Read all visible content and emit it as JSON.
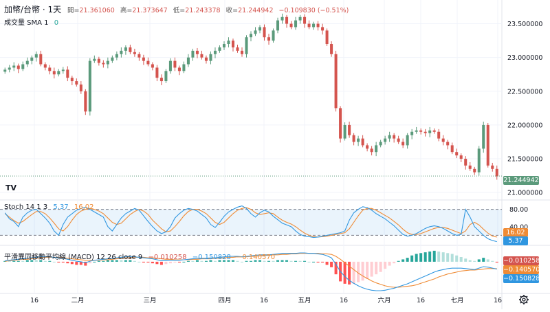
{
  "header": {
    "symbol": "加幣/台幣 · 1天",
    "open_label": "開",
    "open": "21.361060",
    "high_label": "高",
    "high": "21.373647",
    "low_label": "低",
    "low": "21.243378",
    "close_label": "收",
    "close": "21.244942",
    "change": "−0.109830 (−0.51%)"
  },
  "volume_legend": {
    "label": "成交量 SMA 1",
    "value": "0"
  },
  "stoch_legend": {
    "label": "Stoch 14 1 3",
    "k": "5.37",
    "d": "16.02"
  },
  "macd_legend": {
    "label": "平滑異同移動平均線 (MACD) 12 26 close 9",
    "hist": "−0.010258",
    "macd": "−0.150828",
    "signal": "−0.140570"
  },
  "price_box": "21.244942",
  "stoch_boxes": {
    "d": "16.02",
    "k": "5.37"
  },
  "macd_boxes": {
    "hist": "−0.010258",
    "signal": "−0.140570",
    "macd": "−0.150828"
  },
  "logo_text": "TV",
  "settings_icon": "gear-icon",
  "colors": {
    "up": "#5b9a7b",
    "down": "#d4544e",
    "stoch_k": "#2f96e0",
    "stoch_d": "#ef8b35",
    "macd": "#2f96e0",
    "signal": "#ef8b35"
  },
  "chart_data": [
    {
      "type": "candlestick",
      "price_ticks": [
        "23.500000",
        "23.000000",
        "22.500000",
        "22.000000",
        "21.500000",
        "21.000000"
      ],
      "x_ticks": [
        "16",
        "二月",
        "三月",
        "四月",
        "16",
        "五月",
        "16",
        "六月",
        "16",
        "七月",
        "16"
      ],
      "ylim": [
        20.9,
        23.75
      ],
      "closes": [
        22.82,
        22.85,
        22.88,
        22.83,
        22.9,
        22.95,
        23.0,
        23.05,
        22.9,
        22.85,
        22.8,
        22.75,
        22.8,
        22.82,
        22.7,
        22.65,
        22.6,
        22.5,
        22.2,
        22.95,
        22.98,
        22.92,
        22.9,
        22.95,
        23.0,
        23.05,
        23.1,
        23.15,
        23.08,
        23.05,
        23.0,
        22.95,
        22.9,
        22.85,
        22.7,
        22.65,
        22.8,
        22.95,
        22.85,
        22.8,
        22.9,
        23.0,
        23.1,
        23.05,
        23.0,
        22.95,
        23.05,
        23.1,
        23.15,
        23.2,
        23.25,
        23.15,
        23.1,
        23.05,
        23.3,
        23.35,
        23.4,
        23.45,
        23.3,
        23.25,
        23.4,
        23.55,
        23.6,
        23.5,
        23.45,
        23.55,
        23.6,
        23.5,
        23.45,
        23.5,
        23.45,
        23.4,
        23.2,
        23.05,
        22.25,
        21.8,
        22.0,
        21.85,
        21.75,
        21.8,
        21.7,
        21.65,
        21.6,
        21.7,
        21.75,
        21.8,
        21.85,
        21.8,
        21.75,
        21.7,
        21.85,
        21.9,
        21.92,
        21.9,
        21.88,
        21.92,
        21.9,
        21.8,
        21.75,
        21.7,
        21.6,
        21.55,
        21.5,
        21.4,
        21.35,
        21.3,
        21.65,
        22.0,
        21.4,
        21.35,
        21.24
      ],
      "volume": [
        0
      ],
      "stoch": {
        "k": [
          72,
          58,
          52,
          40,
          62,
          72,
          78,
          80,
          70,
          60,
          48,
          30,
          20,
          45,
          62,
          70,
          78,
          82,
          85,
          80,
          74,
          68,
          62,
          40,
          30,
          45,
          60,
          70,
          76,
          82,
          78,
          65,
          52,
          40,
          30,
          24,
          28,
          40,
          60,
          70,
          78,
          82,
          80,
          76,
          68,
          60,
          45,
          38,
          50,
          64,
          74,
          80,
          85,
          88,
          82,
          70,
          62,
          72,
          78,
          74,
          64,
          56,
          48,
          44,
          40,
          30,
          22,
          18,
          17,
          15,
          16,
          18,
          20,
          22,
          24,
          26,
          30,
          55,
          72,
          80,
          86,
          84,
          78,
          70,
          64,
          58,
          50,
          42,
          32,
          22,
          18,
          20,
          24,
          30,
          36,
          40,
          42,
          40,
          36,
          30,
          24,
          20,
          22,
          80,
          62,
          40,
          30,
          20,
          12,
          8,
          5.37
        ],
        "d": [
          70,
          62,
          54,
          48,
          52,
          60,
          68,
          75,
          75,
          70,
          60,
          48,
          35,
          30,
          40,
          55,
          68,
          76,
          80,
          82,
          80,
          76,
          70,
          60,
          50,
          45,
          48,
          58,
          68,
          75,
          80,
          76,
          68,
          55,
          45,
          35,
          28,
          30,
          40,
          52,
          65,
          75,
          80,
          80,
          76,
          70,
          60,
          50,
          45,
          50,
          60,
          70,
          78,
          82,
          84,
          80,
          72,
          68,
          70,
          72,
          70,
          62,
          55,
          50,
          46,
          40,
          32,
          25,
          20,
          17,
          16,
          17,
          18,
          20,
          22,
          24,
          26,
          35,
          50,
          65,
          78,
          82,
          82,
          78,
          72,
          66,
          60,
          52,
          44,
          34,
          26,
          22,
          22,
          24,
          28,
          32,
          36,
          38,
          38,
          36,
          32,
          28,
          24,
          30,
          45,
          50,
          44,
          34,
          25,
          18,
          16.02
        ]
      },
      "macd": {
        "macd": [
          0.02,
          0.03,
          0.04,
          0.05,
          0.06,
          0.07,
          0.08,
          0.09,
          0.1,
          0.1,
          0.1,
          0.09,
          0.08,
          0.07,
          0.05,
          0.03,
          0.01,
          0.0,
          -0.02,
          0.01,
          0.03,
          0.04,
          0.05,
          0.06,
          0.07,
          0.08,
          0.09,
          0.1,
          0.1,
          0.1,
          0.09,
          0.08,
          0.07,
          0.06,
          0.04,
          0.02,
          0.02,
          0.03,
          0.03,
          0.03,
          0.04,
          0.05,
          0.06,
          0.07,
          0.07,
          0.07,
          0.08,
          0.08,
          0.09,
          0.1,
          0.11,
          0.11,
          0.11,
          0.1,
          0.11,
          0.12,
          0.13,
          0.14,
          0.14,
          0.14,
          0.15,
          0.16,
          0.17,
          0.17,
          0.17,
          0.17,
          0.18,
          0.18,
          0.17,
          0.17,
          0.16,
          0.15,
          0.12,
          0.08,
          -0.05,
          -0.2,
          -0.3,
          -0.38,
          -0.44,
          -0.49,
          -0.53,
          -0.56,
          -0.58,
          -0.59,
          -0.59,
          -0.58,
          -0.56,
          -0.54,
          -0.51,
          -0.48,
          -0.45,
          -0.41,
          -0.37,
          -0.33,
          -0.29,
          -0.25,
          -0.21,
          -0.18,
          -0.16,
          -0.14,
          -0.13,
          -0.13,
          -0.13,
          -0.14,
          -0.15,
          -0.16,
          -0.13,
          -0.1,
          -0.11,
          -0.13,
          -0.150828
        ],
        "signal": [
          0.01,
          0.02,
          0.03,
          0.04,
          0.05,
          0.05,
          0.06,
          0.07,
          0.08,
          0.09,
          0.09,
          0.09,
          0.09,
          0.08,
          0.07,
          0.06,
          0.05,
          0.04,
          0.03,
          0.03,
          0.03,
          0.03,
          0.04,
          0.04,
          0.05,
          0.06,
          0.07,
          0.08,
          0.08,
          0.09,
          0.09,
          0.09,
          0.08,
          0.08,
          0.07,
          0.06,
          0.05,
          0.05,
          0.04,
          0.04,
          0.04,
          0.04,
          0.05,
          0.05,
          0.06,
          0.06,
          0.06,
          0.07,
          0.07,
          0.08,
          0.09,
          0.09,
          0.1,
          0.1,
          0.1,
          0.11,
          0.11,
          0.12,
          0.13,
          0.13,
          0.14,
          0.14,
          0.15,
          0.15,
          0.16,
          0.16,
          0.17,
          0.17,
          0.17,
          0.17,
          0.17,
          0.16,
          0.16,
          0.15,
          0.11,
          0.05,
          -0.02,
          -0.09,
          -0.16,
          -0.23,
          -0.29,
          -0.34,
          -0.39,
          -0.43,
          -0.46,
          -0.49,
          -0.51,
          -0.52,
          -0.52,
          -0.51,
          -0.5,
          -0.49,
          -0.47,
          -0.44,
          -0.41,
          -0.38,
          -0.35,
          -0.31,
          -0.28,
          -0.25,
          -0.23,
          -0.21,
          -0.19,
          -0.18,
          -0.17,
          -0.17,
          -0.16,
          -0.15,
          -0.14,
          -0.14,
          -0.14057
        ]
      }
    }
  ]
}
